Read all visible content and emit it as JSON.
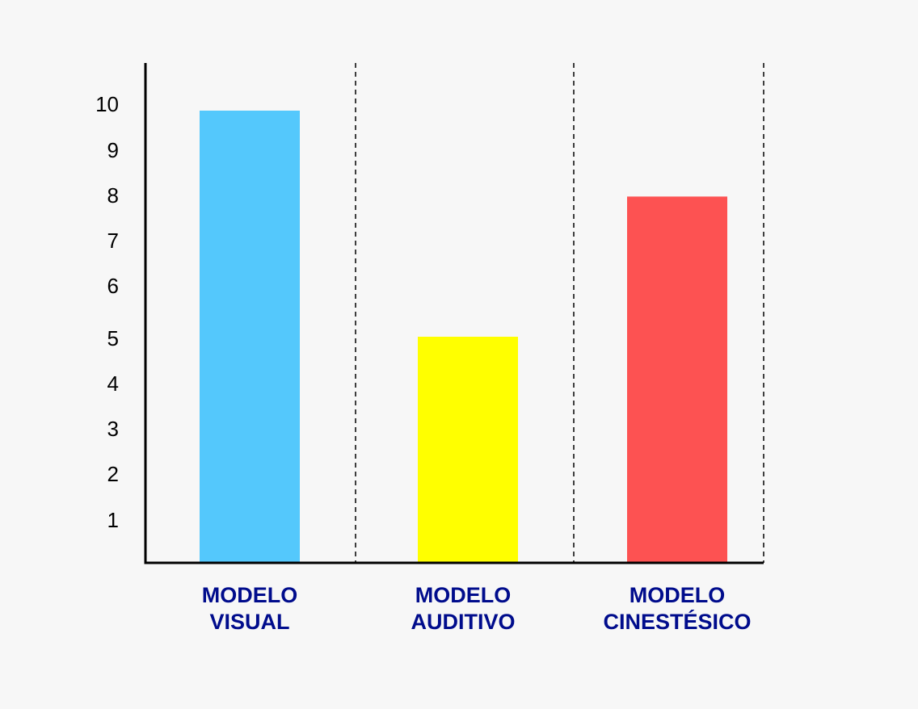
{
  "chart_data": {
    "type": "bar",
    "title": "",
    "xlabel": "",
    "ylabel": "",
    "categories": [
      [
        "MODELO",
        "VISUAL"
      ],
      [
        "MODELO",
        "AUDITIVO"
      ],
      [
        "MODELO",
        "CINESTÉSICO"
      ]
    ],
    "values": [
      10,
      5,
      8.1
    ],
    "colors": [
      "#54c8fc",
      "#ffff00",
      "#fd5252"
    ],
    "yticks": [
      "1",
      "2",
      "3",
      "4",
      "5",
      "6",
      "7",
      "8",
      "9",
      "10"
    ],
    "ylim": [
      0,
      10
    ],
    "grid": false,
    "category_separators": "dashed",
    "label_color": "#000c8c",
    "axis_color": "#000000"
  }
}
